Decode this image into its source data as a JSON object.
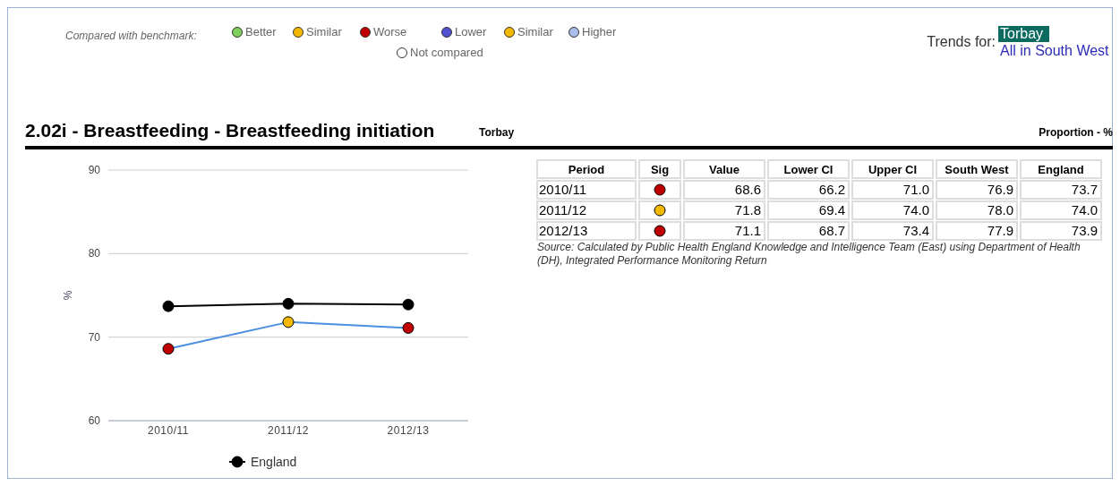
{
  "chart_data": [
    {
      "type": "line",
      "title": "2.02i - Breastfeeding - Breastfeeding initiation",
      "ylabel": "%",
      "categories": [
        "2010/11",
        "2011/12",
        "2012/13"
      ],
      "ylim": [
        60,
        90
      ],
      "yticks": [
        60,
        70,
        80,
        90
      ],
      "grid": "y",
      "legend": "bottom",
      "marker": "circle",
      "line_style": "solid",
      "series": [
        {
          "color": "#4a8fe0",
          "colors": [
            "#c00000",
            "#f5b800",
            "#c00000"
          ],
          "values": [
            68.6,
            71.8,
            71.1
          ]
        },
        {
          "name": "England",
          "color": "#000000",
          "values": [
            73.7,
            74.0,
            73.9
          ]
        }
      ],
      "annotations": [
        "Compared with benchmark:",
        "Better",
        "Similar",
        "Worse",
        "Lower",
        "Similar",
        "Higher",
        "Not compared",
        "Trends for:",
        "Torbay",
        "All in South West"
      ]
    },
    {
      "type": "other",
      "subtitle": "Torbay",
      "xlabel": "Period",
      "categories": [
        "2010/11",
        "2011/12",
        "2012/13"
      ],
      "series": [
        {
          "name": "Sig",
          "colors": [
            "#c00000",
            "#f5b800",
            "#c00000"
          ],
          "values": [
            null,
            null,
            null
          ]
        },
        {
          "name": "Value",
          "values": [
            68.6,
            71.8,
            71.1
          ],
          "value_labels": [
            "68.6",
            "71.8",
            "71.1"
          ]
        },
        {
          "name": "Lower CI",
          "values": [
            66.2,
            69.4,
            68.7
          ],
          "value_labels": [
            "66.2",
            "69.4",
            "68.7"
          ]
        },
        {
          "name": "Upper CI",
          "values": [
            71.0,
            74.0,
            73.4
          ],
          "value_labels": [
            "71.0",
            "74.0",
            "73.4"
          ]
        },
        {
          "name": "South West",
          "values": [
            76.9,
            78.0,
            77.9
          ],
          "value_labels": [
            "76.9",
            "78.0",
            "77.9"
          ]
        },
        {
          "name": "England",
          "values": [
            73.7,
            74.0,
            73.9
          ],
          "value_labels": [
            "73.7",
            "74.0",
            "73.9"
          ]
        }
      ],
      "annotations": [
        "Proportion - %",
        "Source: Calculated by Public Health England Knowledge and Intelligence Team (East) using Department of Health (DH), Integrated Performance Monitoring Return"
      ]
    }
  ]
}
